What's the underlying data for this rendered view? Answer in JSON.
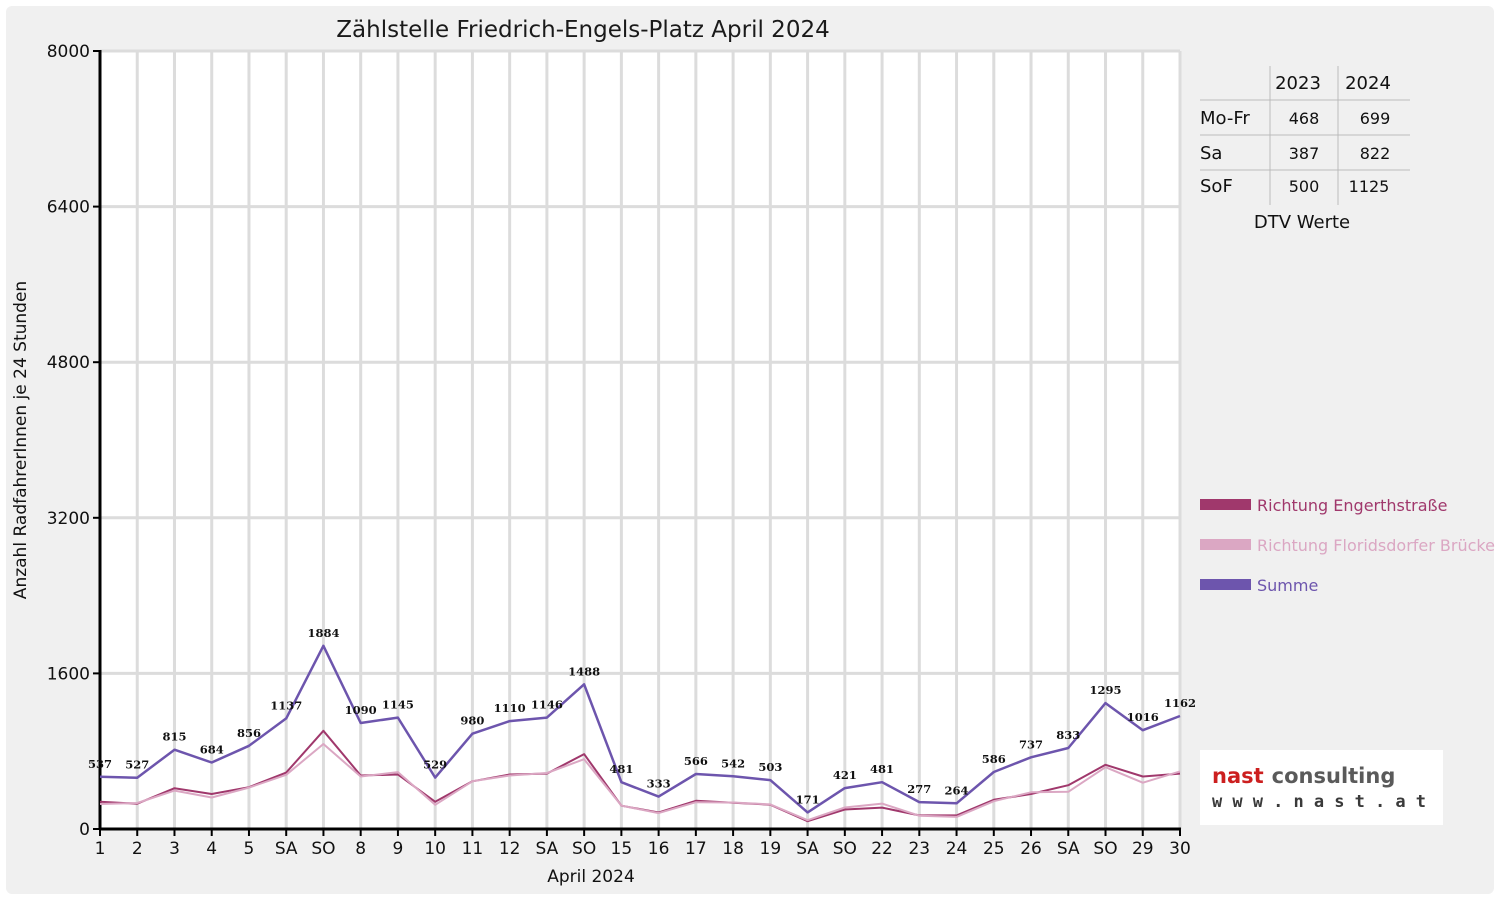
{
  "chart_data": {
    "type": "line",
    "title": "Zählstelle Friedrich-Engels-Platz April 2024",
    "xlabel": "April 2024",
    "ylabel": "Anzahl RadfahrerInnen je 24 Stunden",
    "ylim": [
      0,
      8000
    ],
    "yticks": [
      "0",
      "1600",
      "3200",
      "4800",
      "6400",
      "8000"
    ],
    "grid": true,
    "legend_position": "right",
    "categories": [
      "1",
      "2",
      "3",
      "4",
      "5",
      "SA",
      "SO",
      "8",
      "9",
      "10",
      "11",
      "12",
      "SA",
      "SO",
      "15",
      "16",
      "17",
      "18",
      "19",
      "SA",
      "SO",
      "22",
      "23",
      "24",
      "25",
      "26",
      "SA",
      "SO",
      "29",
      "30"
    ],
    "red_categories": [
      0,
      6,
      13,
      20,
      27
    ],
    "series": [
      {
        "name": "Richtung Engerthstraße",
        "color": "#a0386c",
        "values": [
          280,
          260,
          420,
          360,
          430,
          580,
          1010,
          550,
          560,
          280,
          490,
          560,
          570,
          770,
          240,
          170,
          290,
          270,
          250,
          80,
          200,
          220,
          140,
          140,
          300,
          360,
          450,
          660,
          540,
          570
        ]
      },
      {
        "name": "Richtung Floridsdorfer Brücke",
        "color": "#dba7c3",
        "values": [
          257,
          267,
          395,
          324,
          426,
          557,
          874,
          540,
          585,
          249,
          490,
          550,
          576,
          718,
          241,
          163,
          276,
          272,
          253,
          91,
          221,
          261,
          137,
          124,
          286,
          377,
          383,
          635,
          476,
          592
        ]
      },
      {
        "name": "Summe",
        "color": "#6d55ad",
        "values": [
          537,
          527,
          815,
          684,
          856,
          1137,
          1884,
          1090,
          1145,
          529,
          980,
          1110,
          1146,
          1488,
          481,
          333,
          566,
          542,
          503,
          171,
          421,
          481,
          277,
          264,
          586,
          737,
          833,
          1295,
          1016,
          1162
        ]
      }
    ],
    "data_labels": [
      "537",
      "527",
      "815",
      "684",
      "856",
      "1137",
      "1884",
      "1090",
      "1145",
      "529",
      "980",
      "1110",
      "1146",
      "1488",
      "481",
      "333",
      "566",
      "542",
      "503",
      "171",
      "421",
      "481",
      "277",
      "264",
      "586",
      "737",
      "833",
      "1295",
      "1016",
      "1162"
    ]
  },
  "dtv_table": {
    "caption": "DTV Werte",
    "columns": [
      "2023",
      "2024"
    ],
    "rows": [
      {
        "label": "Mo-Fr",
        "v2023": "468",
        "v2024": "699"
      },
      {
        "label": "Sa",
        "v2023": "387",
        "v2024": "822"
      },
      {
        "label": "SoF",
        "v2023": "500",
        "v2024": "1125"
      }
    ]
  },
  "logo": {
    "word1": "nast",
    "word2": "consulting",
    "url": "www.nast.at"
  }
}
